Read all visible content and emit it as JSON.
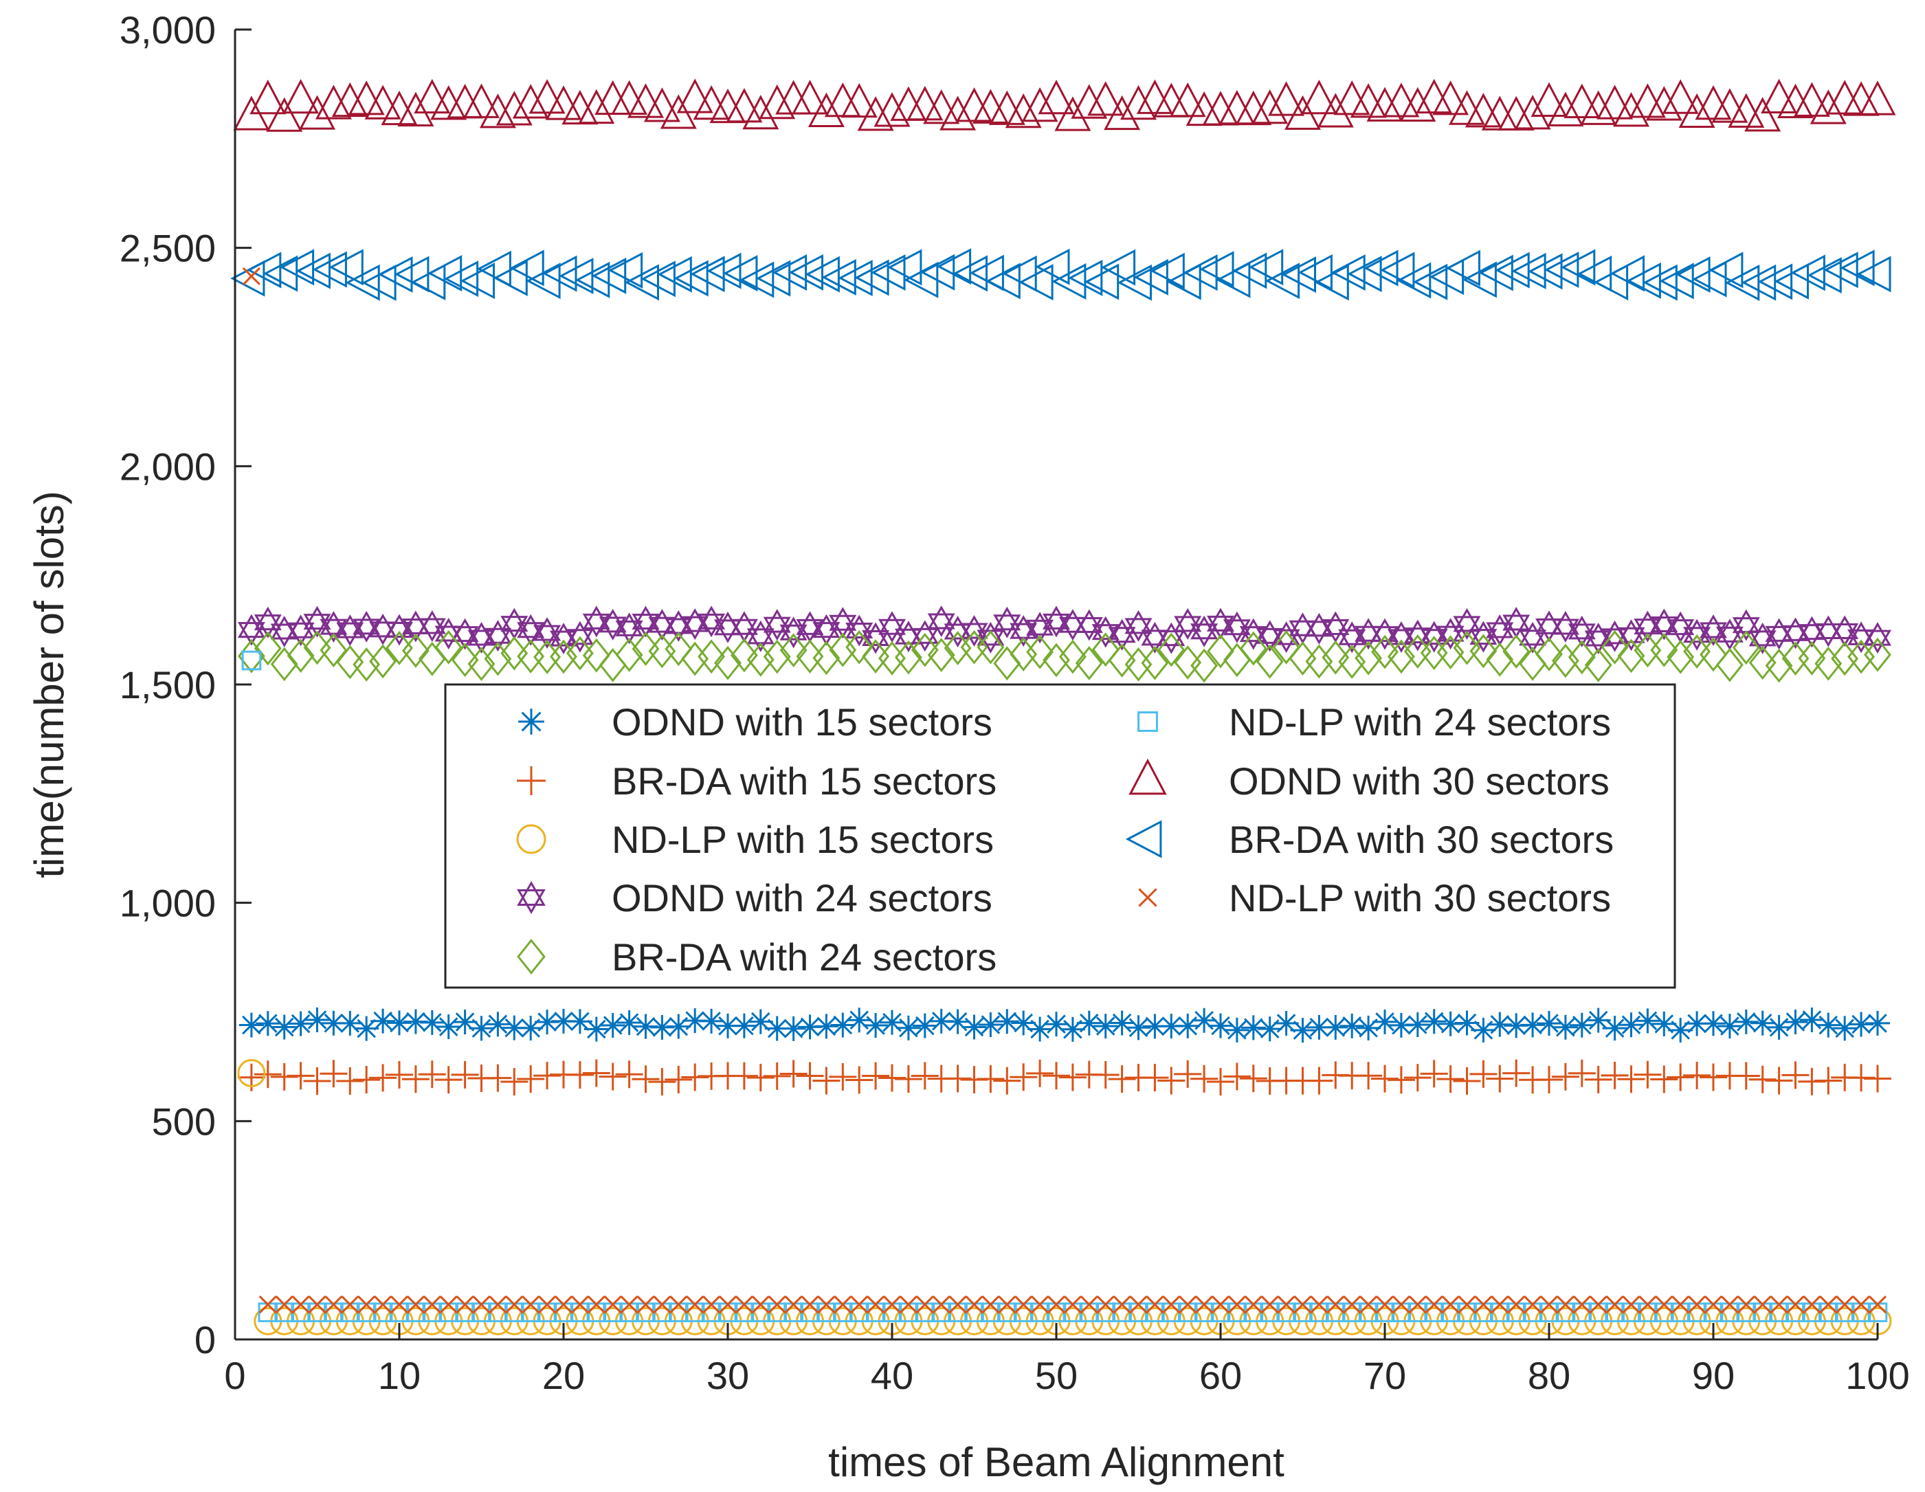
{
  "chart_data": {
    "type": "scatter",
    "title": "",
    "xlabel": "times of Beam Alignment",
    "ylabel": "time(number of slots)",
    "xlim": [
      0,
      100
    ],
    "ylim": [
      0,
      3000
    ],
    "xticks": [
      0,
      10,
      20,
      30,
      40,
      50,
      60,
      70,
      80,
      90,
      100
    ],
    "xtick_labels": [
      "0",
      "10",
      "20",
      "30",
      "40",
      "50",
      "60",
      "70",
      "80",
      "90",
      "100"
    ],
    "yticks": [
      0,
      500,
      1000,
      1500,
      2000,
      2500,
      3000
    ],
    "ytick_labels": [
      "0",
      "500",
      "1,000",
      "1,500",
      "2,000",
      "2,500",
      "3,000"
    ],
    "grid": false,
    "legend_location": "center-left",
    "x_points": {
      "start": 1,
      "end": 100,
      "step": 1
    },
    "series": [
      {
        "name": "ODND with 15 sectors",
        "marker": "asterisk",
        "color": "#0072BD",
        "base": 720,
        "jitter": 12,
        "first": 720
      },
      {
        "name": "BR-DA with 15 sectors",
        "marker": "plus",
        "color": "#D95319",
        "base": 600,
        "jitter": 10,
        "first": 600
      },
      {
        "name": "ND-LP with 15 sectors",
        "marker": "circle",
        "color": "#EDB120",
        "base": 42,
        "jitter": 0,
        "first": 610
      },
      {
        "name": "ODND with 24 sectors",
        "marker": "hexagram",
        "color": "#7E2F8E",
        "base": 1625,
        "jitter": 20,
        "first": 1625
      },
      {
        "name": "BR-DA with 24 sectors",
        "marker": "diamond",
        "color": "#77AC30",
        "base": 1565,
        "jitter": 22,
        "first": 1565
      },
      {
        "name": "ND-LP with 24 sectors",
        "marker": "square",
        "color": "#4DBEEE",
        "base": 62,
        "jitter": 0,
        "first": 1555
      },
      {
        "name": "ODND with 30 sectors",
        "marker": "triangle-up",
        "color": "#A2142F",
        "base": 2818,
        "jitter": 22,
        "first": 2800
      },
      {
        "name": "BR-DA with 30 sectors",
        "marker": "triangle-left",
        "color": "#0072BD",
        "base": 2440,
        "jitter": 20,
        "first": 2430
      },
      {
        "name": "ND-LP with 30 sectors",
        "marker": "x",
        "color": "#D95319",
        "base": 80,
        "jitter": 0,
        "first": 2435
      }
    ]
  }
}
